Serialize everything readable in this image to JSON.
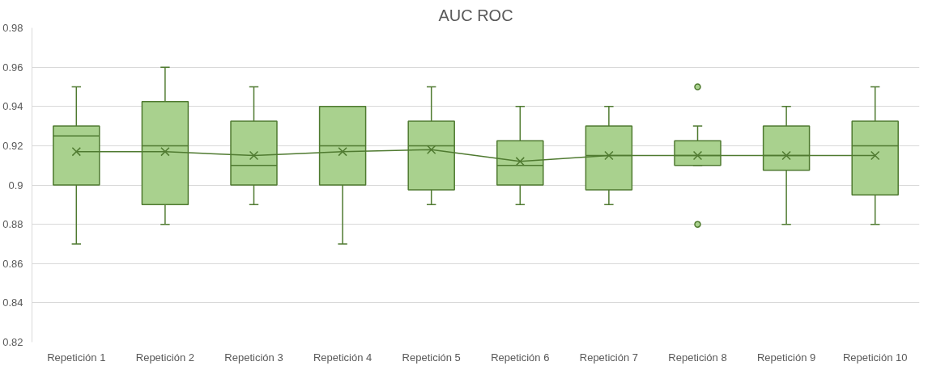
{
  "chart_data": {
    "type": "box",
    "title": "AUC ROC",
    "categories": [
      "Repetición 1",
      "Repetición 2",
      "Repetición 3",
      "Repetición 4",
      "Repetición 5",
      "Repetición 6",
      "Repetición 7",
      "Repetición 8",
      "Repetición 9",
      "Repetición 10"
    ],
    "series": [
      {
        "color": "#a9d18e",
        "boxes": [
          {
            "low": 0.87,
            "q1": 0.9,
            "median": 0.925,
            "q3": 0.93,
            "high": 0.95,
            "mean": 0.917
          },
          {
            "low": 0.88,
            "q1": 0.89,
            "median": 0.92,
            "q3": 0.9425,
            "high": 0.96,
            "mean": 0.917
          },
          {
            "low": 0.89,
            "q1": 0.9,
            "median": 0.91,
            "q3": 0.9325,
            "high": 0.95,
            "mean": 0.915
          },
          {
            "low": 0.87,
            "q1": 0.9,
            "median": 0.92,
            "q3": 0.94,
            "high": 0.94,
            "mean": 0.917
          },
          {
            "low": 0.89,
            "q1": 0.8975,
            "median": 0.92,
            "q3": 0.9325,
            "high": 0.95,
            "mean": 0.918
          },
          {
            "low": 0.89,
            "q1": 0.9,
            "median": 0.91,
            "q3": 0.9225,
            "high": 0.94,
            "mean": 0.912
          },
          {
            "low": 0.89,
            "q1": 0.8975,
            "median": 0.915,
            "q3": 0.93,
            "high": 0.94,
            "mean": 0.915
          },
          {
            "low": 0.91,
            "q1": 0.91,
            "median": 0.915,
            "q3": 0.9225,
            "high": 0.93,
            "mean": 0.915,
            "outliers": [
              0.95,
              0.88
            ]
          },
          {
            "low": 0.88,
            "q1": 0.9075,
            "median": 0.915,
            "q3": 0.93,
            "high": 0.94,
            "mean": 0.915
          },
          {
            "low": 0.88,
            "q1": 0.895,
            "median": 0.92,
            "q3": 0.9325,
            "high": 0.95,
            "mean": 0.915
          }
        ]
      },
      {
        "type": "line",
        "color": "#4f7a30",
        "marker": "none",
        "values": [
          0.917,
          0.917,
          0.915,
          0.917,
          0.918,
          0.912,
          0.915,
          0.915,
          0.915,
          0.915
        ]
      }
    ],
    "ylim": [
      0.82,
      0.98
    ],
    "yticks": [
      0.82,
      0.84,
      0.86,
      0.88,
      0.9,
      0.92,
      0.94,
      0.96,
      0.98
    ],
    "grid": "y"
  }
}
